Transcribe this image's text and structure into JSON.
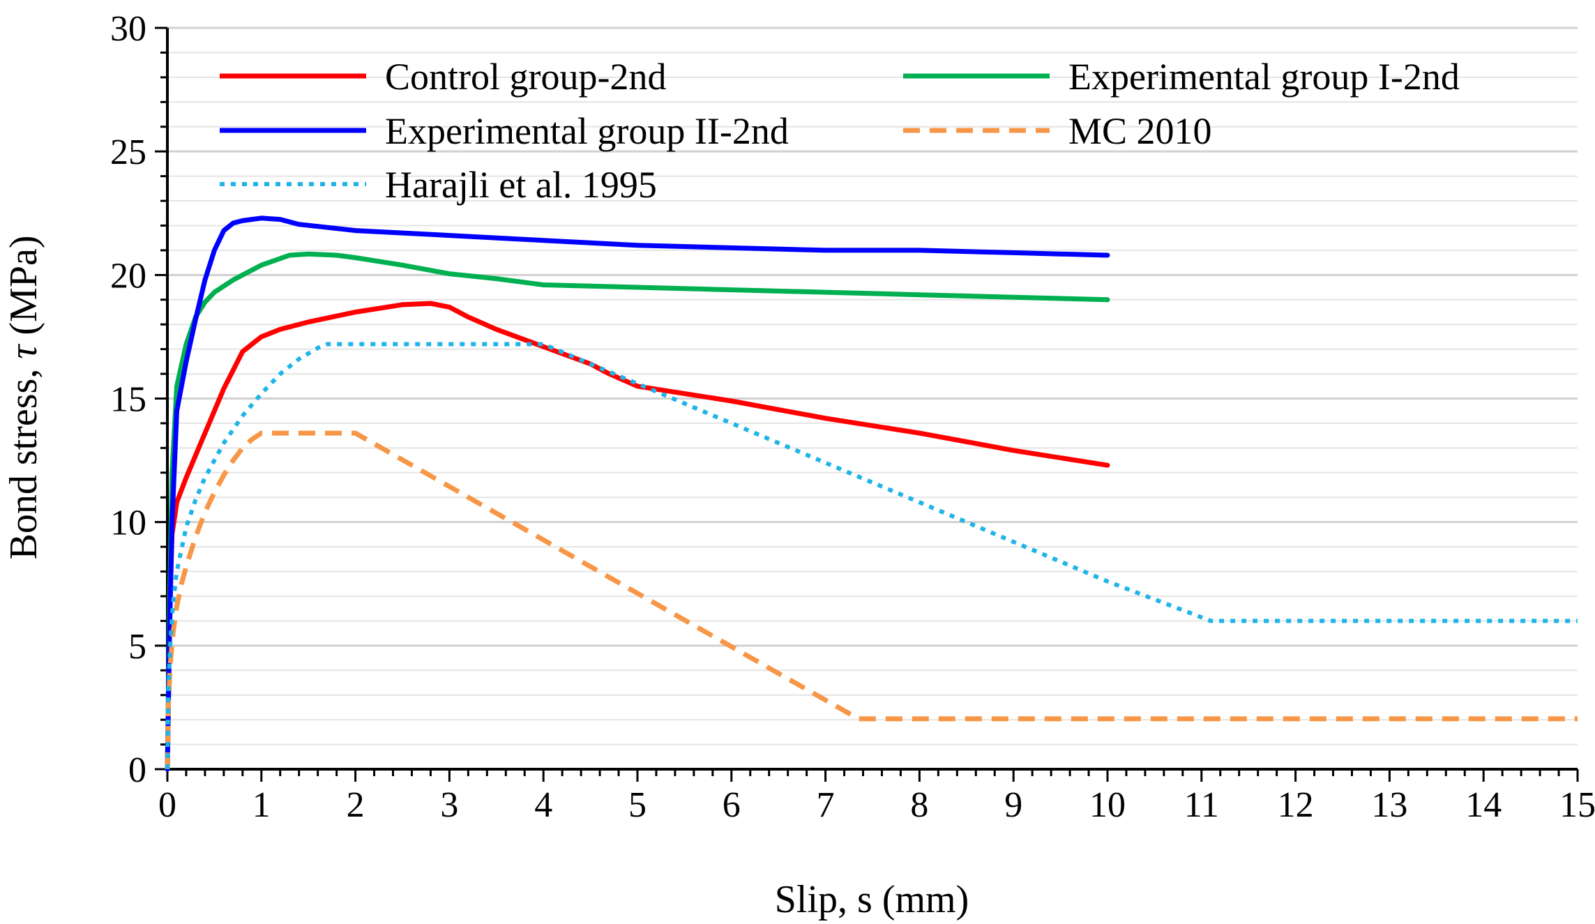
{
  "chart_data": {
    "type": "line",
    "title": "",
    "xlabel": "Slip, s (mm)",
    "ylabel_main": "Bond stress, ",
    "ylabel_symbol": "τ",
    "ylabel_unit": " (MPa)",
    "xlim": [
      0,
      15
    ],
    "ylim": [
      0,
      30
    ],
    "xticks": [
      0,
      1,
      2,
      3,
      4,
      5,
      6,
      7,
      8,
      9,
      10,
      11,
      12,
      13,
      14,
      15
    ],
    "yticks": [
      0,
      5,
      10,
      15,
      20,
      25,
      30
    ],
    "grid": "horizontal minor every 1 MPa",
    "legend": "top, two columns",
    "series": [
      {
        "name": "Control group-2nd",
        "color": "#ff0000",
        "style": "solid",
        "x": [
          0,
          0.03,
          0.05,
          0.1,
          0.2,
          0.4,
          0.6,
          0.8,
          0.9,
          1.0,
          1.2,
          1.5,
          2.0,
          2.5,
          2.8,
          3.0,
          3.2,
          3.5,
          4.0,
          4.5,
          4.7,
          5.0,
          5.5,
          6.0,
          7.0,
          8.0,
          9.0,
          10.0
        ],
        "values": [
          0,
          7.0,
          9.5,
          10.8,
          11.8,
          13.6,
          15.4,
          16.9,
          17.2,
          17.5,
          17.8,
          18.1,
          18.5,
          18.8,
          18.85,
          18.7,
          18.3,
          17.8,
          17.1,
          16.4,
          16.0,
          15.5,
          15.2,
          14.9,
          14.2,
          13.6,
          12.9,
          12.3
        ]
      },
      {
        "name": "Experimental group I-2nd",
        "color": "#00b050",
        "style": "solid",
        "x": [
          0,
          0.02,
          0.05,
          0.1,
          0.2,
          0.3,
          0.4,
          0.5,
          0.7,
          1.0,
          1.3,
          1.5,
          1.8,
          2.0,
          2.5,
          3.0,
          3.5,
          4.0,
          5.0,
          6.0,
          7.0,
          8.0,
          9.0,
          10.0
        ],
        "values": [
          0,
          6.0,
          12.0,
          15.5,
          17.2,
          18.3,
          18.9,
          19.3,
          19.8,
          20.4,
          20.8,
          20.85,
          20.8,
          20.7,
          20.4,
          20.05,
          19.85,
          19.6,
          19.5,
          19.4,
          19.3,
          19.2,
          19.1,
          19.0
        ]
      },
      {
        "name": "Experimental group II-2nd",
        "color": "#0000ff",
        "style": "solid",
        "x": [
          0,
          0.02,
          0.05,
          0.1,
          0.2,
          0.3,
          0.4,
          0.5,
          0.6,
          0.7,
          0.8,
          1.0,
          1.2,
          1.4,
          2.0,
          3.0,
          4.0,
          5.0,
          6.0,
          7.0,
          8.0,
          9.0,
          10.0
        ],
        "values": [
          0,
          5.0,
          10.0,
          14.5,
          16.5,
          18.2,
          19.8,
          21.0,
          21.8,
          22.1,
          22.2,
          22.3,
          22.25,
          22.05,
          21.8,
          21.6,
          21.4,
          21.2,
          21.1,
          21.0,
          21.0,
          20.9,
          20.8
        ]
      },
      {
        "name": "MC 2010",
        "color": "#f79646",
        "style": "dashed",
        "x": [
          0,
          0.01,
          0.03,
          0.06,
          0.1,
          0.15,
          0.2,
          0.3,
          0.4,
          0.5,
          0.6,
          0.7,
          0.8,
          0.9,
          1.0,
          2.0,
          7.35,
          15.0
        ],
        "values": [
          0,
          2.5,
          4.2,
          5.5,
          6.6,
          7.5,
          8.2,
          9.4,
          10.4,
          11.2,
          11.9,
          12.5,
          13.0,
          13.35,
          13.6,
          13.6,
          2.04,
          2.04
        ]
      },
      {
        "name": "Harajli et al. 1995",
        "color": "#1fb4e8",
        "style": "dotted",
        "x": [
          0,
          0.01,
          0.03,
          0.06,
          0.1,
          0.2,
          0.3,
          0.4,
          0.5,
          0.6,
          0.8,
          1.0,
          1.2,
          1.4,
          1.6,
          1.7,
          4.0,
          5.0,
          6.0,
          7.0,
          8.0,
          9.0,
          10.0,
          11.1,
          15.0
        ],
        "values": [
          0,
          3.0,
          5.0,
          6.7,
          8.0,
          9.8,
          10.9,
          11.8,
          12.5,
          13.2,
          14.3,
          15.2,
          16.0,
          16.6,
          17.05,
          17.2,
          17.2,
          15.6,
          14.0,
          12.4,
          10.8,
          9.2,
          7.6,
          6.0,
          6.0
        ]
      }
    ]
  }
}
